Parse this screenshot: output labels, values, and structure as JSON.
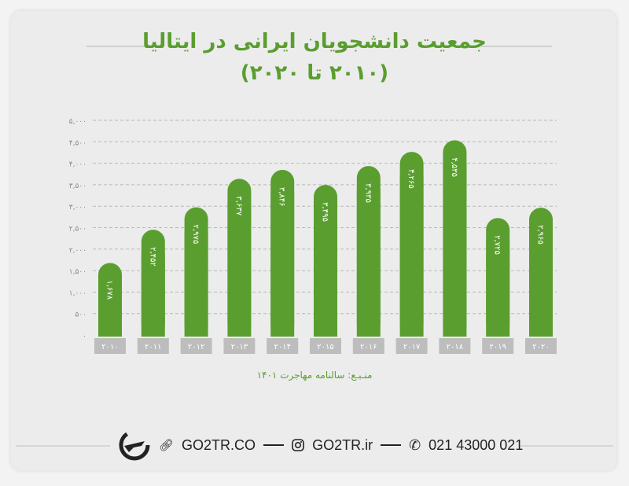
{
  "title_line1": "جمعیت دانشجویان ایرانی در ایتالیا",
  "title_line2": "(۲۰۱۰ تا ۲۰۲۰)",
  "source": "منـبـع: سالنامه مهاجرت ۱۴۰۱",
  "footer": {
    "website": "GO2TR.CO",
    "instagram": "GO2TR.ir",
    "phone": "021 43000 021"
  },
  "colors": {
    "bar": "#5a9e2f",
    "title": "#5a9e2f",
    "category_box": "#bdbdbd"
  },
  "chart_data": {
    "type": "bar",
    "categories": [
      "۲۰۱۰",
      "۲۰۱۱",
      "۲۰۱۲",
      "۲۰۱۳",
      "۲۰۱۴",
      "۲۰۱۵",
      "۲۰۱۶",
      "۲۰۱۷",
      "۲۰۱۸",
      "۲۰۱۹",
      "۲۰۲۰"
    ],
    "values": [
      1678,
      2452,
      2975,
      3637,
      3846,
      3495,
      3935,
      4265,
      4535,
      2725,
      2965
    ],
    "data_labels": [
      "۱,۶۷۸",
      "۲,۴۵۲",
      "۲,۹۷۵",
      "۳,۶۳۷",
      "۳,۸۴۶",
      "۳,۴۹۵",
      "۳,۹۳۵",
      "۴,۲۶۵",
      "۴,۵۳۵",
      "۲,۷۲۵",
      "۲,۹۶۵"
    ],
    "yticks": [
      0,
      500,
      1000,
      1500,
      2000,
      2500,
      3000,
      3500,
      4000,
      4500,
      5000
    ],
    "ytick_labels": [
      "۰",
      "۵۰۰",
      "۱,۰۰۰",
      "۱,۵۰۰",
      "۲,۰۰۰",
      "۲,۵۰۰",
      "۳,۰۰۰",
      "۳,۵۰۰",
      "۴,۰۰۰",
      "۴,۵۰۰",
      "۵,۰۰۰"
    ],
    "ylim": [
      0,
      5000
    ],
    "grid": true
  }
}
